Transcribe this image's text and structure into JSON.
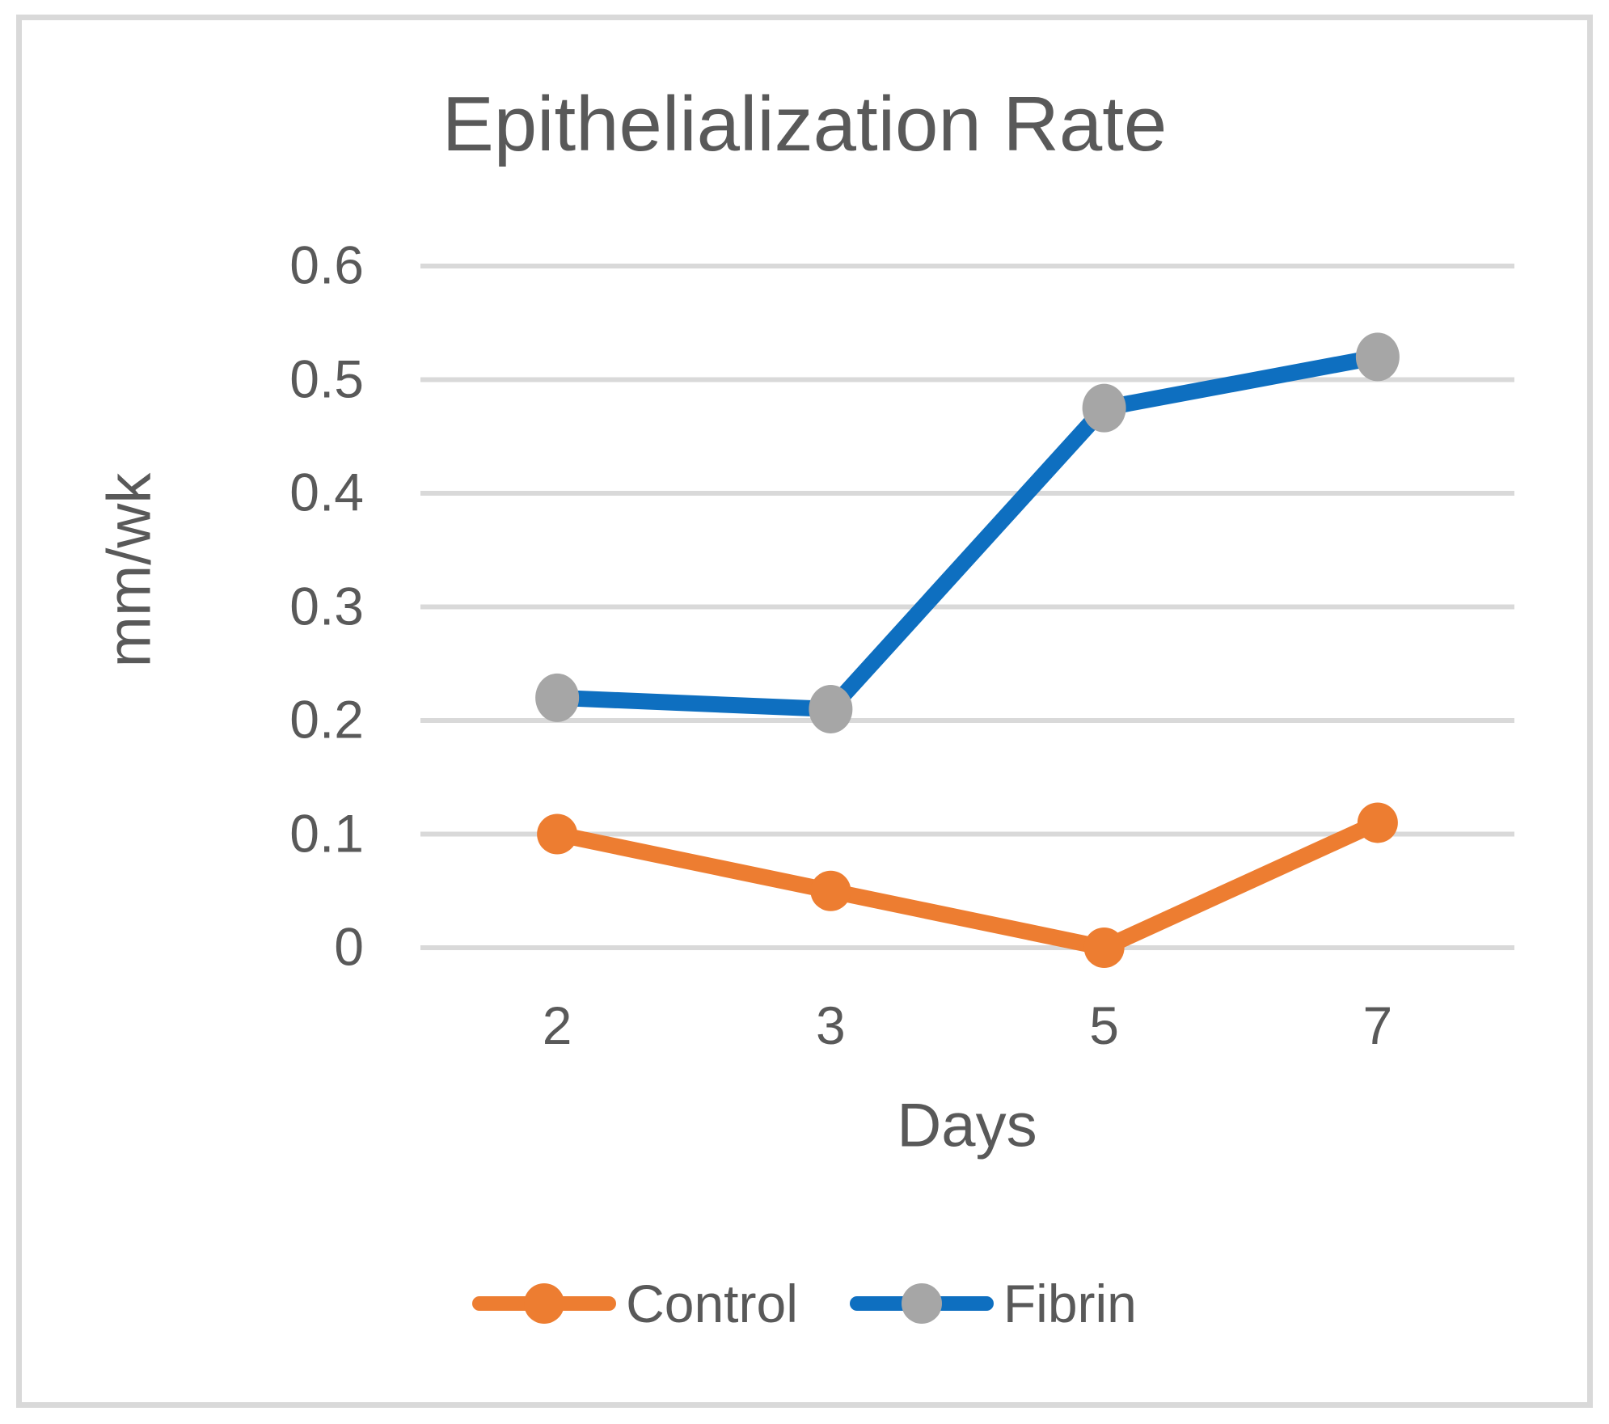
{
  "chart_data": {
    "type": "line",
    "title": "Epithelialization Rate",
    "xlabel": "Days",
    "ylabel": "mm/wk",
    "categories": [
      "2",
      "3",
      "5",
      "7"
    ],
    "series": [
      {
        "name": "Control",
        "values": [
          0.1,
          0.05,
          0,
          0.11
        ],
        "line_color": "#ED7D31",
        "marker_color": "#ED7D31"
      },
      {
        "name": "Fibrin",
        "values": [
          0.22,
          0.21,
          0.475,
          0.52
        ],
        "line_color": "#0E6FC0",
        "marker_color": "#A6A6A6"
      }
    ],
    "ylim": [
      0,
      0.6
    ],
    "yticks": [
      0,
      0.1,
      0.2,
      0.3,
      0.4,
      0.5,
      0.6
    ],
    "ytick_labels": [
      "0",
      "0.1",
      "0.2",
      "0.3",
      "0.4",
      "0.5",
      "0.6"
    ],
    "grid": "horizontal",
    "legend_position": "bottom",
    "colors": {
      "text": "#595959",
      "grid": "#D9D9D9",
      "frame_border": "#D9D9D9",
      "background": "#FFFFFF"
    }
  }
}
